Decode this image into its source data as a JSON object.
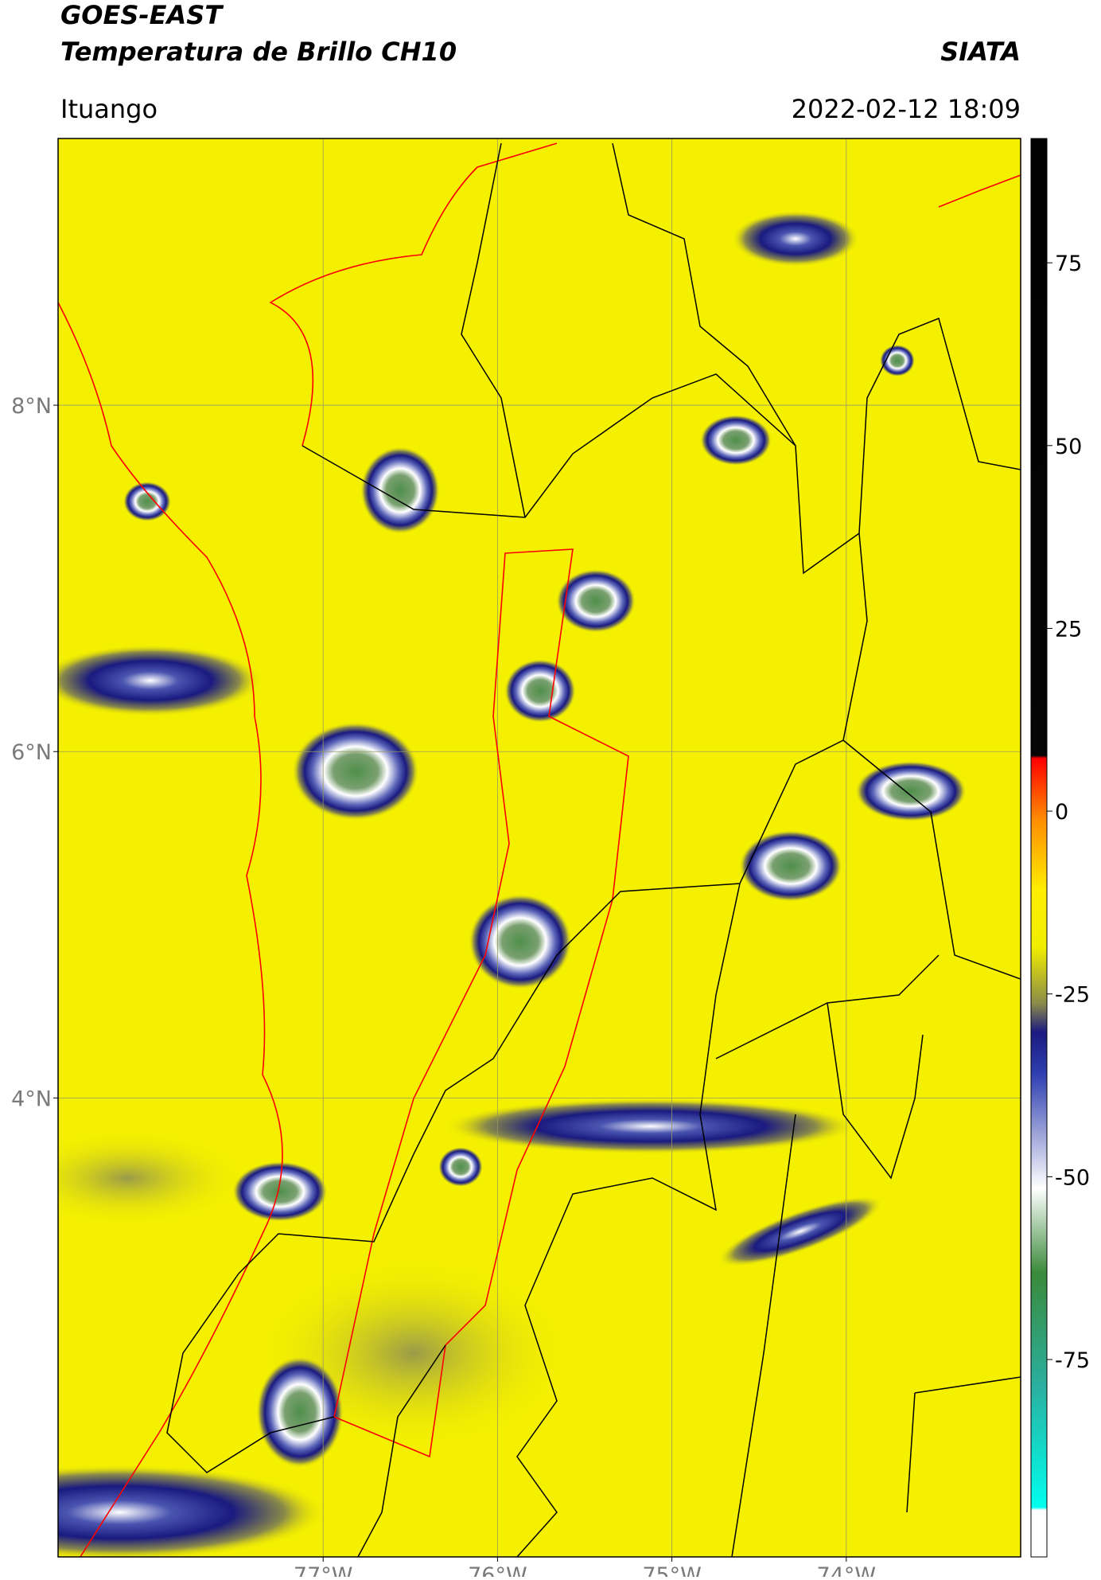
{
  "chart_data": {
    "type": "map",
    "title": "GOES-EAST",
    "subtitle": "Temperatura de Brillo CH10",
    "source": "SIATA",
    "location": "Ituango",
    "datetime": "2022-02-12 18:09",
    "xlim": [
      -78.52,
      -73.0
    ],
    "ylim": [
      1.35,
      9.54
    ],
    "xticks": [
      {
        "value": -77,
        "label": "77°W"
      },
      {
        "value": -76,
        "label": "76°W"
      },
      {
        "value": -75,
        "label": "75°W"
      },
      {
        "value": -74,
        "label": "74°W"
      }
    ],
    "yticks": [
      {
        "value": 8,
        "label": "8°N"
      },
      {
        "value": 6,
        "label": "6°N"
      },
      {
        "value": 4,
        "label": "4°N"
      }
    ],
    "grid": true,
    "colorbar": {
      "lim": [
        -102,
        92
      ],
      "ticks": [
        75,
        50,
        25,
        0,
        -25,
        -50,
        -75
      ]
    }
  }
}
